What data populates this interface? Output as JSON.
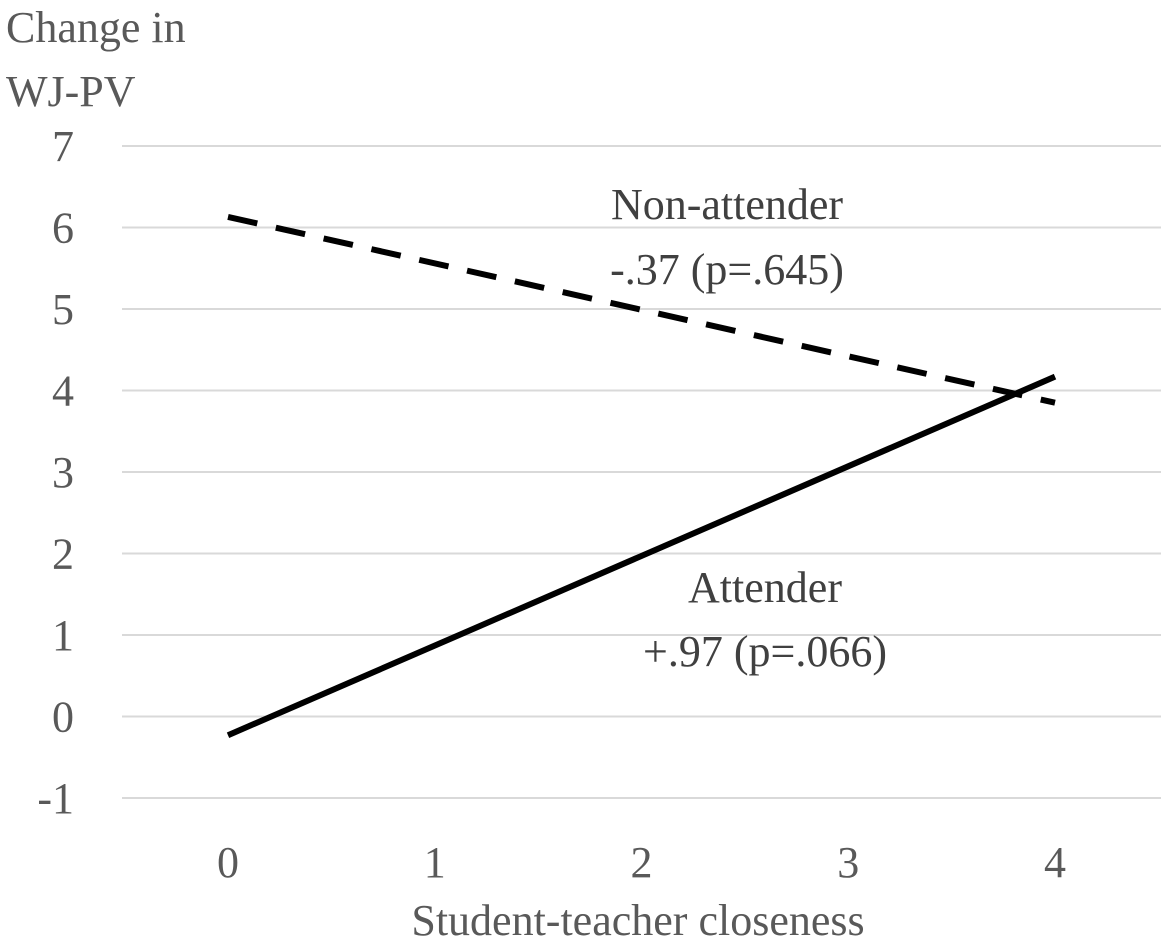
{
  "chart_data": {
    "type": "line",
    "title": "",
    "ylabel": [
      "Change in",
      "WJ-PV"
    ],
    "xlabel": "Student-teacher closeness",
    "x": [
      0,
      4
    ],
    "x_ticks": [
      "0",
      "1",
      "2",
      "3",
      "4"
    ],
    "y_ticks": [
      "-1",
      "0",
      "1",
      "2",
      "3",
      "4",
      "5",
      "6",
      "7"
    ],
    "xlim": [
      -0.5,
      4.5
    ],
    "ylim": [
      -1,
      7
    ],
    "grid": true,
    "legend": "none",
    "series": [
      {
        "name": "Non-attender",
        "x": [
          0,
          4
        ],
        "values": [
          6.13,
          3.85
        ],
        "style": "dashed",
        "color": "#000000",
        "annotation": [
          "Non-attender",
          "-.37 (p=.645)"
        ]
      },
      {
        "name": "Attender",
        "x": [
          0,
          4
        ],
        "values": [
          -0.23,
          4.17
        ],
        "style": "solid",
        "color": "#000000",
        "annotation": [
          "Attender",
          "+.97 (p=.066)"
        ]
      }
    ],
    "colors": {
      "grid": "#d9d9d9",
      "text": "#595959",
      "line": "#000000"
    }
  }
}
